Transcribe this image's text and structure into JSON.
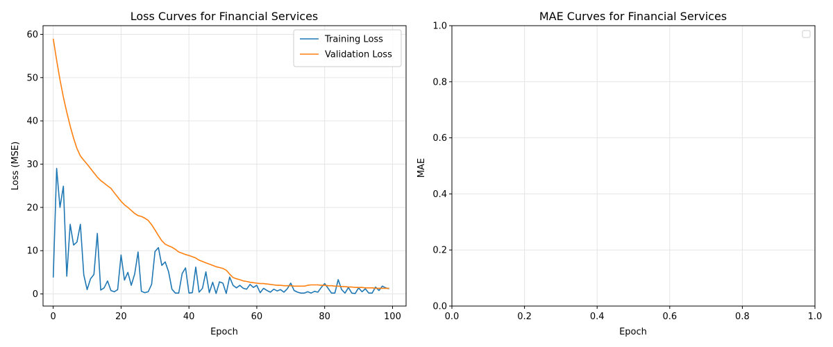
{
  "chart_data": [
    {
      "type": "line",
      "title": "Loss Curves for Financial Services",
      "xlabel": "Epoch",
      "ylabel": "Loss (MSE)",
      "xlim": [
        -3,
        104
      ],
      "ylim": [
        -2.8,
        62
      ],
      "xticks": [
        0,
        20,
        40,
        60,
        80,
        100
      ],
      "yticks": [
        0,
        10,
        20,
        30,
        40,
        50,
        60
      ],
      "grid": true,
      "legend_position": "top-right",
      "series": [
        {
          "name": "Training Loss",
          "color": "#1f77b4",
          "x": [
            0,
            1,
            2,
            3,
            4,
            5,
            6,
            7,
            8,
            9,
            10,
            11,
            12,
            13,
            14,
            15,
            16,
            17,
            18,
            19,
            20,
            21,
            22,
            23,
            24,
            25,
            26,
            27,
            28,
            29,
            30,
            31,
            32,
            33,
            34,
            35,
            36,
            37,
            38,
            39,
            40,
            41,
            42,
            43,
            44,
            45,
            46,
            47,
            48,
            49,
            50,
            51,
            52,
            53,
            54,
            55,
            56,
            57,
            58,
            59,
            60,
            61,
            62,
            63,
            64,
            65,
            66,
            67,
            68,
            69,
            70,
            71,
            72,
            73,
            74,
            75,
            76,
            77,
            78,
            79,
            80,
            81,
            82,
            83,
            84,
            85,
            86,
            87,
            88,
            89,
            90,
            91,
            92,
            93,
            94,
            95,
            96,
            97,
            98,
            99
          ],
          "y": [
            3.8,
            29.0,
            20.0,
            24.9,
            4.1,
            16.1,
            11.3,
            12.0,
            16.1,
            4.4,
            1.0,
            3.5,
            4.5,
            14.0,
            0.9,
            1.4,
            3.0,
            0.8,
            0.5,
            1.0,
            9.0,
            3.2,
            5.0,
            2.0,
            4.6,
            9.7,
            0.6,
            0.3,
            0.5,
            2.2,
            9.8,
            10.7,
            6.6,
            7.4,
            5.1,
            1.1,
            0.2,
            0.2,
            4.7,
            6.0,
            0.2,
            0.3,
            6.2,
            0.4,
            1.3,
            5.1,
            0.3,
            2.7,
            0.1,
            2.8,
            2.5,
            0.1,
            3.9,
            2.0,
            1.4,
            2.0,
            1.3,
            1.1,
            2.2,
            1.5,
            2.0,
            0.3,
            1.3,
            0.8,
            0.4,
            1.1,
            0.7,
            1.0,
            0.4,
            1.2,
            2.5,
            0.8,
            0.4,
            0.2,
            0.2,
            0.5,
            0.2,
            0.6,
            0.4,
            1.5,
            2.4,
            1.3,
            0.2,
            0.2,
            3.3,
            1.0,
            0.2,
            1.5,
            0.2,
            0.1,
            1.4,
            0.5,
            1.2,
            0.2,
            0.2,
            1.6,
            0.8,
            1.8,
            1.4,
            1.2
          ]
        },
        {
          "name": "Validation Loss",
          "color": "#ff7f0e",
          "x": [
            0,
            1,
            2,
            3,
            4,
            5,
            6,
            7,
            8,
            9,
            10,
            11,
            12,
            13,
            14,
            15,
            16,
            17,
            18,
            19,
            20,
            21,
            22,
            23,
            24,
            25,
            26,
            27,
            28,
            29,
            30,
            31,
            32,
            33,
            34,
            35,
            36,
            37,
            38,
            39,
            40,
            41,
            42,
            43,
            44,
            45,
            46,
            47,
            48,
            49,
            50,
            51,
            52,
            53,
            54,
            55,
            56,
            57,
            58,
            59,
            60,
            61,
            62,
            63,
            64,
            65,
            66,
            67,
            68,
            69,
            70,
            71,
            72,
            73,
            74,
            75,
            76,
            77,
            78,
            79,
            80,
            81,
            82,
            83,
            84,
            85,
            86,
            87,
            88,
            89,
            90,
            91,
            92,
            93,
            94,
            95,
            96,
            97,
            98,
            99
          ],
          "y": [
            59.0,
            54.0,
            49.5,
            45.5,
            42.0,
            38.8,
            36.0,
            33.6,
            31.9,
            30.9,
            30.0,
            29.0,
            28.0,
            27.0,
            26.2,
            25.6,
            25.0,
            24.4,
            23.4,
            22.4,
            21.4,
            20.6,
            20.0,
            19.3,
            18.6,
            18.1,
            17.9,
            17.5,
            17.0,
            16.0,
            14.8,
            13.5,
            12.3,
            11.5,
            11.1,
            10.8,
            10.3,
            9.7,
            9.4,
            9.1,
            8.9,
            8.6,
            8.3,
            7.8,
            7.5,
            7.2,
            6.9,
            6.6,
            6.3,
            6.1,
            5.9,
            5.5,
            4.6,
            3.8,
            3.5,
            3.3,
            3.0,
            2.9,
            2.7,
            2.6,
            2.5,
            2.4,
            2.4,
            2.3,
            2.2,
            2.1,
            2.0,
            2.0,
            1.9,
            1.9,
            1.9,
            1.8,
            1.8,
            1.8,
            1.8,
            2.0,
            2.1,
            2.1,
            2.1,
            2.0,
            2.0,
            1.9,
            1.9,
            1.8,
            1.8,
            1.7,
            1.7,
            1.6,
            1.6,
            1.5,
            1.5,
            1.5,
            1.4,
            1.4,
            1.4,
            1.3,
            1.3,
            1.3,
            1.3,
            1.3
          ]
        }
      ]
    },
    {
      "type": "line",
      "title": "MAE Curves for Financial Services",
      "xlabel": "Epoch",
      "ylabel": "MAE",
      "xlim": [
        0,
        1
      ],
      "ylim": [
        0,
        1
      ],
      "xticks": [
        "0.0",
        "0.2",
        "0.4",
        "0.6",
        "0.8",
        "1.0"
      ],
      "yticks": [
        "0.0",
        "0.2",
        "0.4",
        "0.6",
        "0.8",
        "1.0"
      ],
      "grid": true,
      "legend_position": "top-right",
      "series": []
    }
  ]
}
